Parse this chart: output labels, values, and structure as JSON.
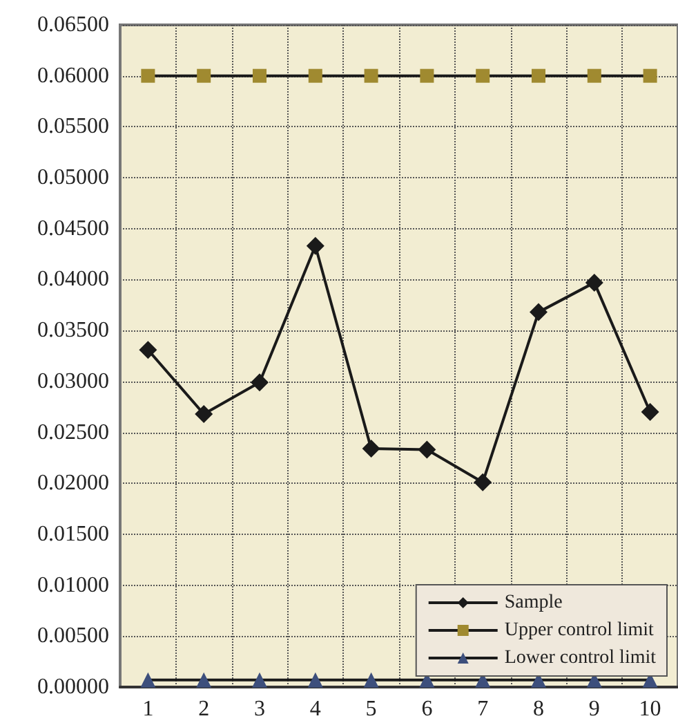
{
  "chart_data": {
    "type": "line",
    "categories": [
      "1",
      "2",
      "3",
      "4",
      "5",
      "6",
      "7",
      "8",
      "9",
      "10"
    ],
    "series": [
      {
        "name": "Sample",
        "color": "#1a1a1a",
        "marker": "diamond",
        "values": [
          0.0331,
          0.0268,
          0.0299,
          0.0433,
          0.0234,
          0.0233,
          0.0201,
          0.0368,
          0.0397,
          0.027
        ]
      },
      {
        "name": "Upper control limit",
        "color": "#a08a30",
        "marker": "square",
        "values": [
          0.06,
          0.06,
          0.06,
          0.06,
          0.06,
          0.06,
          0.06,
          0.06,
          0.06,
          0.06
        ]
      },
      {
        "name": "Lower control limit",
        "color": "#3d4f7c",
        "marker": "triangle",
        "values": [
          0.0007,
          0.0007,
          0.0007,
          0.0007,
          0.0007,
          0.0007,
          0.0007,
          0.0007,
          0.0007,
          0.0007
        ]
      }
    ],
    "ylim": [
      0,
      0.065
    ],
    "yticks": [
      {
        "value": 0,
        "label": "0.00000"
      },
      {
        "value": 0.005,
        "label": "0.00500"
      },
      {
        "value": 0.01,
        "label": "0.01000"
      },
      {
        "value": 0.015,
        "label": "0.01500"
      },
      {
        "value": 0.02,
        "label": "0.02000"
      },
      {
        "value": 0.025,
        "label": "0.02500"
      },
      {
        "value": 0.03,
        "label": "0.03000"
      },
      {
        "value": 0.035,
        "label": "0.03500"
      },
      {
        "value": 0.04,
        "label": "0.04000"
      },
      {
        "value": 0.045,
        "label": "0.04500"
      },
      {
        "value": 0.05,
        "label": "0.05000"
      },
      {
        "value": 0.055,
        "label": "0.05500"
      },
      {
        "value": 0.06,
        "label": "0.06000"
      },
      {
        "value": 0.065,
        "label": "0.06500"
      }
    ],
    "grid": true,
    "legend": "bottom right",
    "line_style": "solid"
  }
}
